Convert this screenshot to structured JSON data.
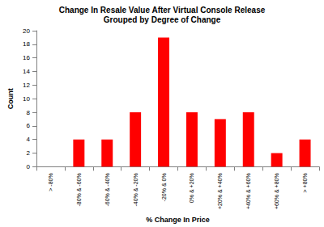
{
  "chart_data": {
    "type": "bar",
    "title": "Change In Resale Value After Virtual Console Release",
    "subtitle": "Grouped by Degree of Change",
    "x_label": "% Change In Price",
    "y_label": "Count",
    "categories": [
      "> -80%",
      "-80% & -60%",
      "-60% & -40%",
      "-40% & -20%",
      "-20% & 0%",
      "0% & +20%",
      "+20% & +40%",
      "+40% & +60%",
      "+60% & +80%",
      "> +80%"
    ],
    "values": [
      0,
      4,
      4,
      8,
      19,
      8,
      7,
      8,
      2,
      4
    ],
    "color": "#ff0000",
    "ylim": [
      0,
      20
    ],
    "yticks": [
      0,
      2,
      4,
      6,
      8,
      10,
      12,
      14,
      16,
      18,
      20
    ],
    "grid": false
  }
}
